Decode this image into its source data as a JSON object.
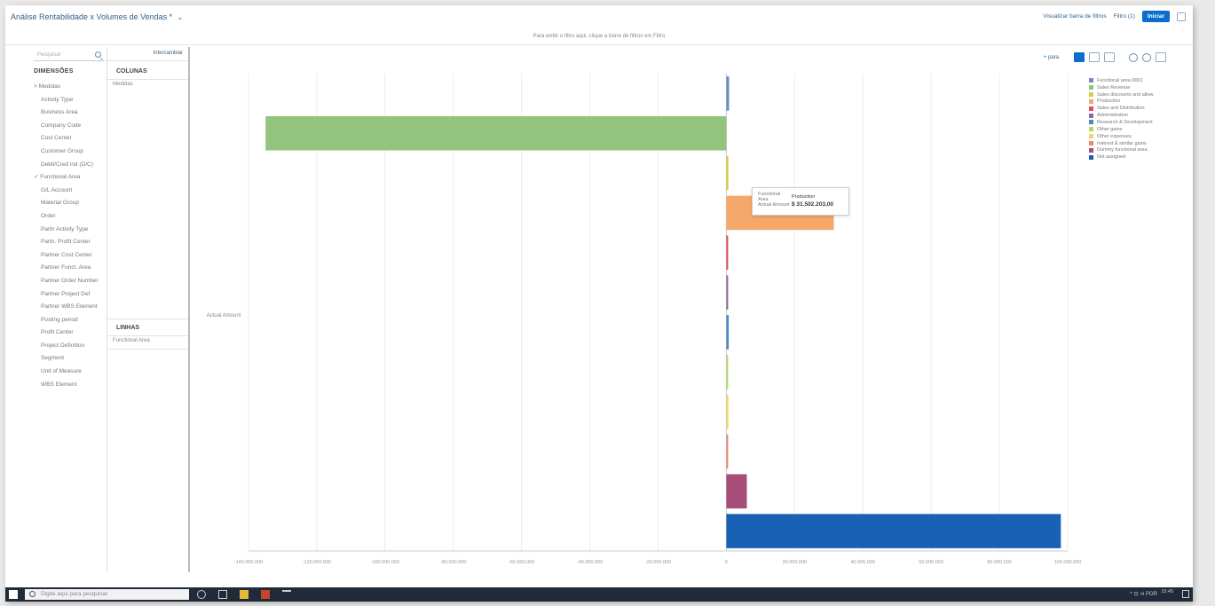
{
  "header": {
    "title": "Análise Rentabilidade x Volumes de Vendas *",
    "links": [
      "Visualizar barra de filtros",
      "Filtro (1)"
    ],
    "start_button": "Iniciar",
    "subtitle": "Para exibir o filtro aqui, clique a barra de filtros em Filtro"
  },
  "dimensions": {
    "search_placeholder": "Pesquisar",
    "heading": "DIMENSÕES",
    "items": [
      {
        "label": "> Medidas",
        "type": "group"
      },
      {
        "label": "Activity Type",
        "type": "child"
      },
      {
        "label": "Business Area",
        "type": "child"
      },
      {
        "label": "Company Code",
        "type": "child"
      },
      {
        "label": "Cost Center",
        "type": "child"
      },
      {
        "label": "Customer Group",
        "type": "child"
      },
      {
        "label": "Debit/Cred ind (D/C)",
        "type": "child"
      },
      {
        "label": "✓ Functional Area",
        "type": "group"
      },
      {
        "label": "G/L Account",
        "type": "child"
      },
      {
        "label": "Material Group",
        "type": "child"
      },
      {
        "label": "Order",
        "type": "child"
      },
      {
        "label": "Partn Activity Type",
        "type": "child"
      },
      {
        "label": "Partn. Profit Center",
        "type": "child"
      },
      {
        "label": "Partner Cost Center",
        "type": "child"
      },
      {
        "label": "Partner Funct. Area",
        "type": "child"
      },
      {
        "label": "Partner Order Number",
        "type": "child"
      },
      {
        "label": "Partner Project Def",
        "type": "child"
      },
      {
        "label": "Partner WBS Element",
        "type": "child"
      },
      {
        "label": "Posting period",
        "type": "child"
      },
      {
        "label": "Profit Center",
        "type": "child"
      },
      {
        "label": "Project Definition",
        "type": "child"
      },
      {
        "label": "Segment",
        "type": "child"
      },
      {
        "label": "Unit of Measure",
        "type": "child"
      },
      {
        "label": "WBS Element",
        "type": "child"
      }
    ]
  },
  "layout_panel": {
    "invert_link": "Intercambiar",
    "columns_heading": "COLUNAS",
    "columns_item": "Medidas",
    "rows_heading": "LINHAS",
    "rows_item": "Functional Area"
  },
  "toolbar": {
    "text": "+ para"
  },
  "chart_data": {
    "type": "bar",
    "orientation": "horizontal",
    "ylabel": "Actual Amount",
    "xlim": [
      -140000000,
      100000000
    ],
    "x_ticks": [
      -140000000,
      -120000000,
      -100000000,
      -80000000,
      -60000000,
      -40000000,
      -20000000,
      0,
      20000000,
      40000000,
      60000000,
      80000000,
      100000000
    ],
    "x_tick_labels": [
      "-140.000.000",
      "-120.000.000",
      "-100.000.000",
      "-80.000.000",
      "-60.000.000",
      "-40.000.000",
      "-20.000.000",
      "0",
      "20.000.000",
      "40.000.000",
      "60.000.000",
      "80.000.000",
      "100.000.000"
    ],
    "grid": true,
    "legend_position": "top-right",
    "categories": [
      "Functional area 0001",
      "Sales Revenue",
      "Sales discounts and allow.",
      "Production",
      "Sales and Distribution",
      "Administration",
      "Research & Development",
      "Other gains",
      "Other expenses",
      "Interest & similar gains",
      "Dummy functional area",
      "Not assigned"
    ],
    "values": [
      800000,
      -135000000,
      600000,
      31502203,
      400000,
      500000,
      700000,
      400000,
      600000,
      500000,
      6000000,
      98000000
    ],
    "colors": [
      "#6c8ebf",
      "#93c47d",
      "#d8cc4a",
      "#f6a86a",
      "#d9534f",
      "#8e6a9e",
      "#4a89c8",
      "#b5d66b",
      "#f3d36a",
      "#e88a6e",
      "#a64d79",
      "#1861b5"
    ]
  },
  "tooltip": {
    "key1": "Functional Area",
    "val1": "Production",
    "key2": "Actual Amount",
    "val2": "$ 31.502.203,00"
  },
  "taskbar": {
    "search_placeholder": "Digite aqui para pesquisar",
    "tray": "^ ⊡ ⊲ POR",
    "clock": "15:45"
  }
}
